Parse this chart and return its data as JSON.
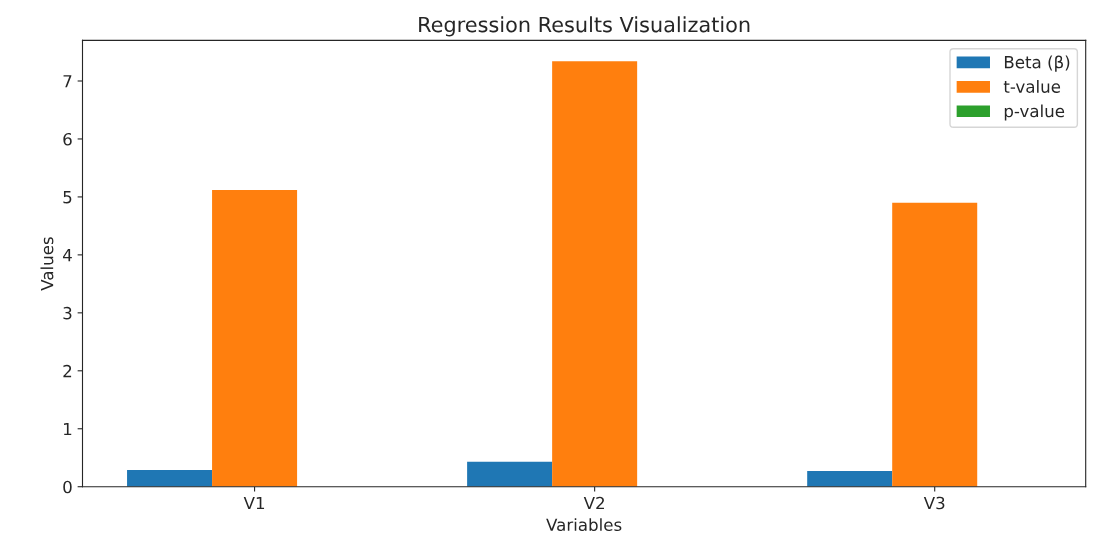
{
  "chart_data": {
    "type": "bar",
    "title": "Regression Results Visualization",
    "xlabel": "Variables",
    "ylabel": "Values",
    "categories": [
      "V1",
      "V2",
      "V3"
    ],
    "series": [
      {
        "name": "Beta (β)",
        "color": "#1f77b4",
        "values": [
          0.29,
          0.43,
          0.27
        ]
      },
      {
        "name": "t-value",
        "color": "#ff7f0e",
        "values": [
          5.12,
          7.34,
          4.9
        ]
      },
      {
        "name": "p-value",
        "color": "#2ca02c",
        "values": [
          0.0,
          0.0,
          0.0
        ]
      }
    ],
    "ylim": [
      0,
      7.7
    ],
    "yticks": [
      0,
      1,
      2,
      3,
      4,
      5,
      6,
      7
    ],
    "grid": false,
    "legend": "top right"
  }
}
